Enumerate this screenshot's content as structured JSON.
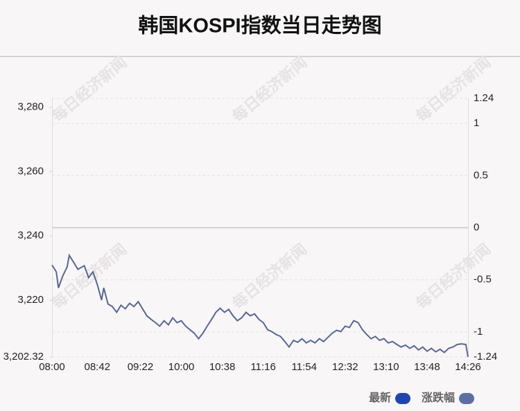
{
  "chart_data": {
    "type": "line",
    "title": "韩国KOSPI指数当日走势图",
    "watermark": "每日经济新闻",
    "x": [
      "08:00",
      "08:04",
      "08:06",
      "08:10",
      "08:14",
      "08:16",
      "08:20",
      "08:24",
      "08:30",
      "08:34",
      "08:38",
      "08:42",
      "08:46",
      "08:48",
      "08:52",
      "08:56",
      "09:00",
      "09:04",
      "09:08",
      "09:12",
      "09:16",
      "09:20",
      "09:24",
      "09:28",
      "09:32",
      "09:36",
      "09:40",
      "09:44",
      "09:48",
      "09:52",
      "09:56",
      "10:00",
      "10:04",
      "10:08",
      "10:12",
      "10:16",
      "10:20",
      "10:24",
      "10:28",
      "10:32",
      "10:36",
      "10:40",
      "10:44",
      "10:48",
      "10:52",
      "10:56",
      "11:00",
      "11:04",
      "11:08",
      "11:12",
      "11:16",
      "11:20",
      "11:24",
      "11:28",
      "11:32",
      "11:36",
      "11:40",
      "11:44",
      "11:48",
      "11:52",
      "11:56",
      "12:00",
      "12:04",
      "12:08",
      "12:12",
      "12:16",
      "12:20",
      "12:24",
      "12:28",
      "12:32",
      "12:36",
      "12:40",
      "12:44",
      "12:48",
      "12:52",
      "12:56",
      "13:00",
      "13:04",
      "13:08",
      "13:12",
      "13:16",
      "13:20",
      "13:24",
      "13:28",
      "13:32",
      "13:36",
      "13:40",
      "13:44",
      "13:48",
      "13:52",
      "13:56",
      "14:00",
      "14:04",
      "14:08",
      "14:12",
      "14:16",
      "14:20",
      "14:24",
      "14:26"
    ],
    "series": [
      {
        "color": "#566791",
        "values": [
          3230.9,
          3228.8,
          3223.8,
          3227.5,
          3230.3,
          3233.9,
          3231.8,
          3229.6,
          3230.7,
          3227.0,
          3228.8,
          3224.9,
          3220.0,
          3223.8,
          3218.8,
          3218.0,
          3216.2,
          3218.4,
          3217.3,
          3219.0,
          3218.0,
          3219.5,
          3217.3,
          3215.1,
          3214.0,
          3213.0,
          3211.9,
          3213.6,
          3212.3,
          3214.5,
          3213.0,
          3213.6,
          3211.9,
          3210.8,
          3209.7,
          3208.0,
          3209.7,
          3211.9,
          3214.0,
          3216.2,
          3217.5,
          3216.2,
          3217.1,
          3215.1,
          3213.6,
          3214.5,
          3216.2,
          3215.1,
          3215.7,
          3214.0,
          3213.0,
          3210.8,
          3210.2,
          3209.3,
          3208.7,
          3207.1,
          3205.4,
          3207.5,
          3206.9,
          3208.0,
          3206.7,
          3207.5,
          3206.7,
          3208.0,
          3207.1,
          3208.4,
          3209.7,
          3210.6,
          3210.2,
          3211.9,
          3211.5,
          3213.6,
          3213.0,
          3210.8,
          3209.3,
          3208.0,
          3208.7,
          3207.5,
          3208.0,
          3206.7,
          3207.1,
          3206.2,
          3205.4,
          3206.0,
          3205.0,
          3205.8,
          3204.5,
          3205.4,
          3204.1,
          3205.0,
          3203.9,
          3204.7,
          3203.7,
          3205.0,
          3205.4,
          3206.2,
          3206.4,
          3206.2,
          3202.32
        ]
      }
    ],
    "legend": [
      {
        "name": "最新",
        "color": "#1f45b0"
      },
      {
        "name": "涨跌幅",
        "color": "#5b6fa3"
      }
    ],
    "xlim": [
      "08:00",
      "14:26"
    ],
    "xticks": [
      "08:00",
      "08:42",
      "09:22",
      "10:00",
      "10:38",
      "11:16",
      "11:54",
      "12:32",
      "13:10",
      "13:48",
      "14:26"
    ],
    "ylim": [
      3202.32,
      3282.74
    ],
    "yticks": [
      {
        "value": 3280,
        "label": "3,280"
      },
      {
        "value": 3260,
        "label": "3,260"
      },
      {
        "value": 3240,
        "label": "3,240"
      },
      {
        "value": 3220,
        "label": "3,220"
      },
      {
        "value": 3202.32,
        "label": "3,202.32"
      }
    ],
    "y2lim": [
      -1.24,
      1.24
    ],
    "y2ticks": [
      1.24,
      1,
      0.5,
      0,
      -0.5,
      -1,
      -1.24
    ],
    "grid": true
  }
}
